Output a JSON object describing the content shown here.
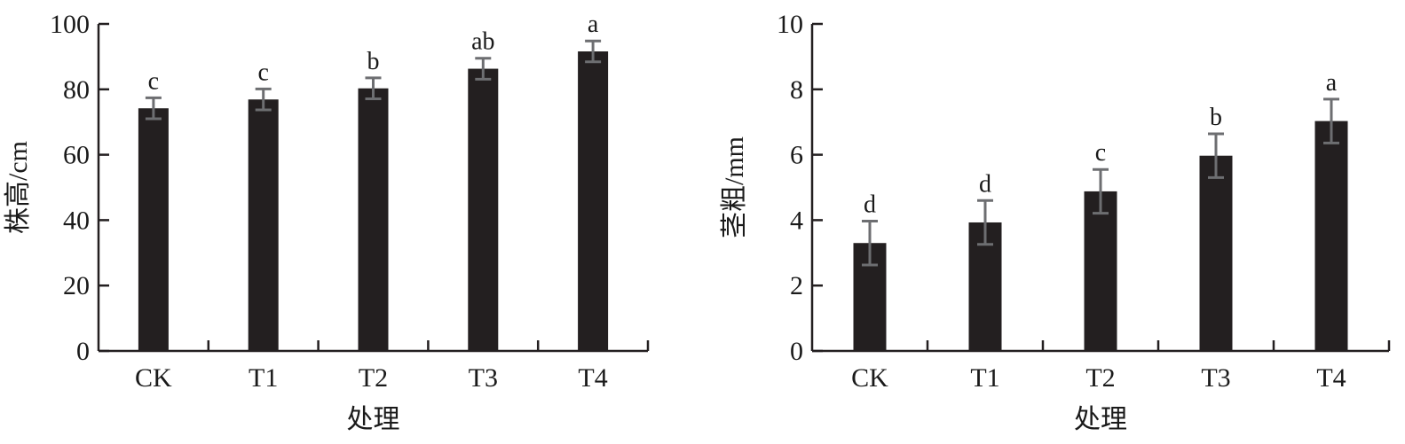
{
  "colors": {
    "bar": "#231f20",
    "error_bar": "#6d6e71",
    "axis": "#231f20"
  },
  "chart_data": [
    {
      "type": "bar",
      "title": "",
      "xlabel": "处理",
      "ylabel": "株高/cm",
      "ylim": [
        0,
        100
      ],
      "yticks": [
        "0",
        "20",
        "40",
        "60",
        "80",
        "100"
      ],
      "categories": [
        "CK",
        "T1",
        "T2",
        "T3",
        "T4"
      ],
      "values": [
        74.2,
        76.9,
        80.3,
        86.3,
        91.6
      ],
      "errors": [
        3.2,
        3.2,
        3.2,
        3.2,
        3.2
      ],
      "significance": [
        "c",
        "c",
        "b",
        "ab",
        "a"
      ]
    },
    {
      "type": "bar",
      "title": "",
      "xlabel": "处理",
      "ylabel": "茎粗/mm",
      "ylim": [
        0,
        10
      ],
      "yticks": [
        "0",
        "2",
        "4",
        "6",
        "8",
        "10"
      ],
      "categories": [
        "CK",
        "T1",
        "T2",
        "T3",
        "T4"
      ],
      "values": [
        3.3,
        3.93,
        4.88,
        5.97,
        7.03
      ],
      "errors": [
        0.67,
        0.67,
        0.67,
        0.67,
        0.67
      ],
      "significance": [
        "d",
        "d",
        "c",
        "b",
        "a"
      ]
    }
  ]
}
